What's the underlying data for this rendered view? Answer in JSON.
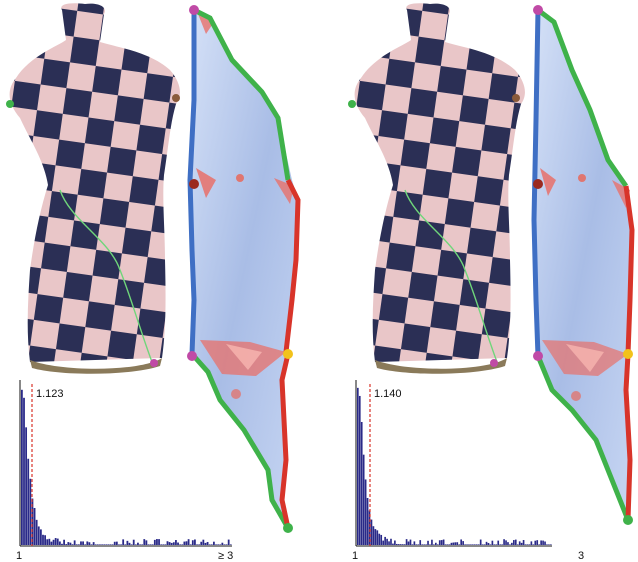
{
  "panels": [
    {
      "id": "left",
      "histogram": {
        "median_label": "1.123",
        "x_min_label": "1",
        "x_max_label": "≥ 3",
        "median": 1.123,
        "x_range": [
          1,
          3
        ]
      }
    },
    {
      "id": "right",
      "histogram": {
        "median_label": "1.140",
        "x_min_label": "1",
        "x_max_label": "3",
        "median": 1.14,
        "x_range": [
          1,
          3
        ]
      }
    }
  ],
  "colors": {
    "checker_dark": "#2b2f55",
    "checker_light": "#e9c6c8",
    "boundary_blue": "#3f6fc4",
    "boundary_green": "#3fb24a",
    "boundary_red": "#d8342a",
    "uv_fill": "#b8c9ec",
    "distortion_red": "#e8706a",
    "corner_magenta": "#c04aa6",
    "corner_darkred": "#9b2a20",
    "corner_yellow": "#f2c21b",
    "hist_bar": "#2a2a88",
    "median_line": "#d8342a"
  }
}
